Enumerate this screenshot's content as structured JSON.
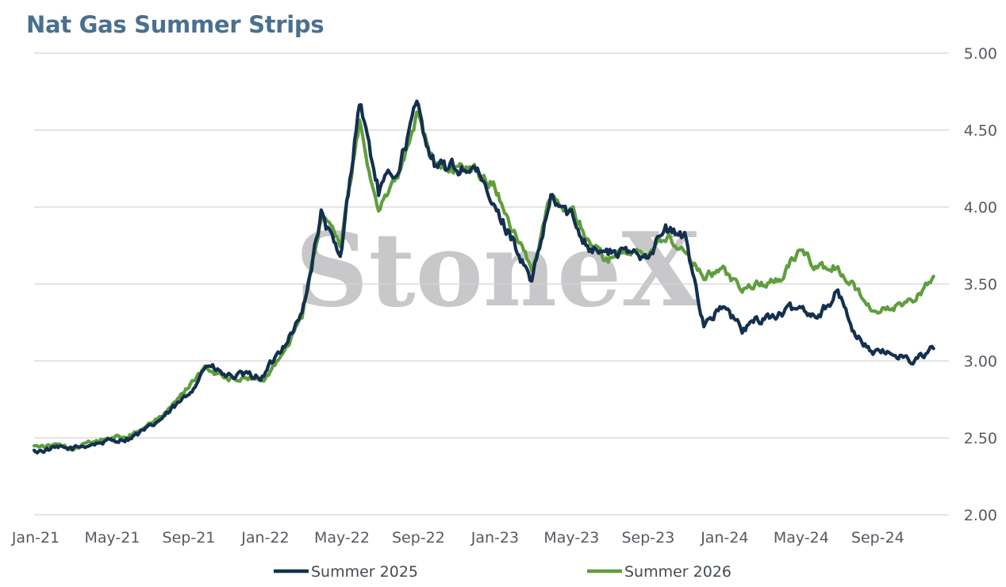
{
  "chart_data": {
    "type": "line",
    "title": "Nat Gas Summer Strips",
    "watermark": "StoneX",
    "xlabel": "",
    "ylabel": "",
    "ylim": [
      2.0,
      5.0
    ],
    "y_ticks": [
      "2.00",
      "2.50",
      "3.00",
      "3.50",
      "4.00",
      "4.50",
      "5.00"
    ],
    "x_ticks": [
      "Jan-21",
      "May-21",
      "Sep-21",
      "Jan-22",
      "May-22",
      "Sep-22",
      "Jan-23",
      "May-23",
      "Sep-23",
      "Jan-24",
      "May-24",
      "Sep-24"
    ],
    "x_range_months": [
      "Jan-21",
      "Dec-24"
    ],
    "grid": "horizontal",
    "legend_position": "bottom",
    "series": [
      {
        "name": "Summer 2025",
        "color": "#14304f",
        "x": [
          "Jan-21",
          "Feb-21",
          "Mar-21",
          "Apr-21",
          "May-21",
          "Jun-21",
          "Jul-21",
          "Aug-21",
          "Sep-21",
          "Oct-21",
          "Nov-21",
          "Dec-21",
          "Jan-22",
          "Feb-22",
          "Mar-22",
          "Apr-22",
          "May-22",
          "Jun-22",
          "Jul-22",
          "Aug-22",
          "Sep-22",
          "Oct-22",
          "Nov-22",
          "Dec-22",
          "Jan-23",
          "Feb-23",
          "Mar-23",
          "Apr-23",
          "May-23",
          "Jun-23",
          "Jul-23",
          "Aug-23",
          "Sep-23",
          "Oct-23",
          "Nov-23",
          "Dec-23",
          "Jan-24",
          "Feb-24",
          "Mar-24",
          "Apr-24",
          "May-24",
          "Jun-24",
          "Jul-24",
          "Aug-24",
          "Sep-24",
          "Oct-24",
          "Nov-24",
          "Dec-24"
        ],
        "values": [
          2.41,
          2.43,
          2.43,
          2.46,
          2.48,
          2.5,
          2.56,
          2.66,
          2.77,
          2.98,
          2.9,
          2.9,
          2.9,
          3.1,
          3.3,
          3.95,
          3.65,
          4.7,
          4.1,
          4.25,
          4.65,
          4.25,
          4.25,
          4.25,
          4.0,
          3.8,
          3.5,
          4.05,
          3.95,
          3.75,
          3.7,
          3.7,
          3.7,
          3.85,
          3.8,
          3.25,
          3.35,
          3.2,
          3.28,
          3.3,
          3.35,
          3.3,
          3.45,
          3.15,
          3.05,
          3.05,
          3.0,
          3.08
        ]
      },
      {
        "name": "Summer 2026",
        "color": "#5f9e3d",
        "x": [
          "Jan-21",
          "Feb-21",
          "Mar-21",
          "Apr-21",
          "May-21",
          "Jun-21",
          "Jul-21",
          "Aug-21",
          "Sep-21",
          "Oct-21",
          "Nov-21",
          "Dec-21",
          "Jan-22",
          "Feb-22",
          "Mar-22",
          "Apr-22",
          "May-22",
          "Jun-22",
          "Jul-22",
          "Aug-22",
          "Sep-22",
          "Oct-22",
          "Nov-22",
          "Dec-22",
          "Jan-23",
          "Feb-23",
          "Mar-23",
          "Apr-23",
          "May-23",
          "Jun-23",
          "Jul-23",
          "Aug-23",
          "Sep-23",
          "Oct-23",
          "Nov-23",
          "Dec-23",
          "Jan-24",
          "Feb-24",
          "Mar-24",
          "Apr-24",
          "May-24",
          "Jun-24",
          "Jul-24",
          "Aug-24",
          "Sep-24",
          "Oct-24",
          "Nov-24",
          "Dec-24"
        ],
        "values": [
          2.45,
          2.45,
          2.43,
          2.47,
          2.5,
          2.52,
          2.58,
          2.68,
          2.82,
          2.96,
          2.88,
          2.88,
          2.88,
          3.05,
          3.28,
          3.95,
          3.75,
          4.55,
          4.0,
          4.2,
          4.6,
          4.25,
          4.25,
          4.25,
          4.15,
          3.85,
          3.6,
          4.05,
          4.0,
          3.8,
          3.65,
          3.7,
          3.68,
          3.8,
          3.75,
          3.55,
          3.6,
          3.45,
          3.5,
          3.55,
          3.72,
          3.6,
          3.62,
          3.45,
          3.32,
          3.35,
          3.4,
          3.55
        ]
      }
    ]
  }
}
